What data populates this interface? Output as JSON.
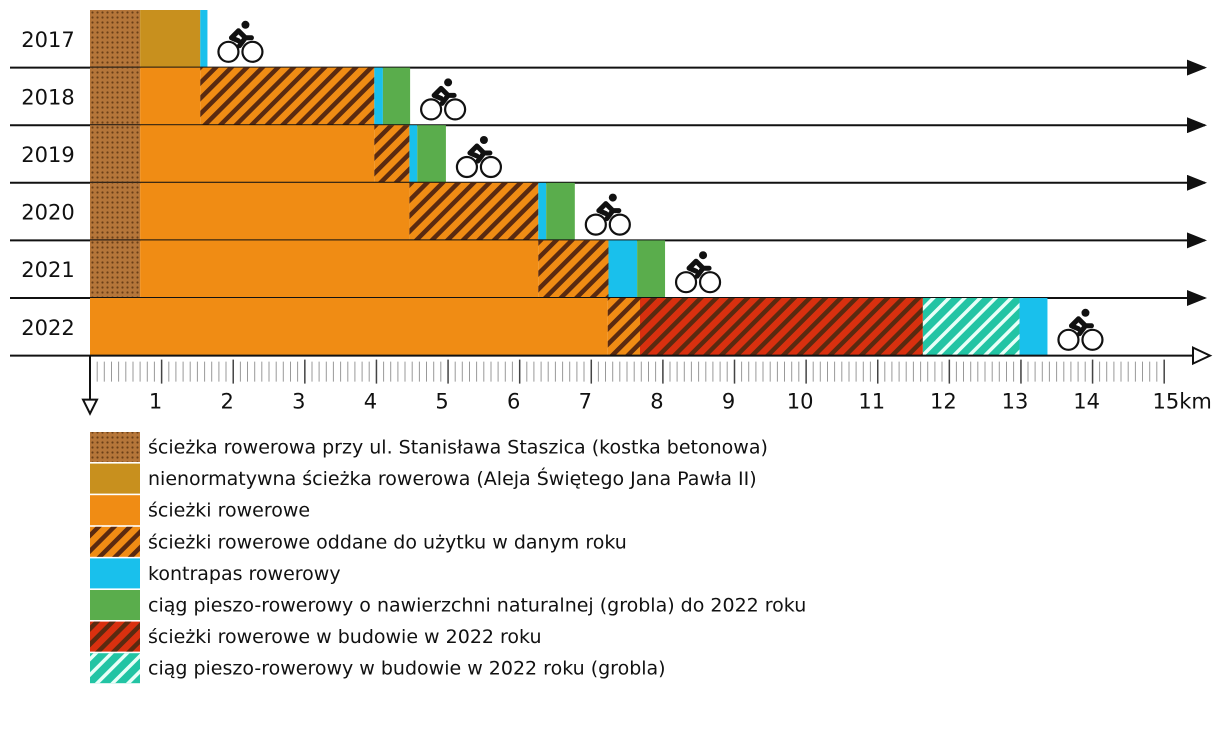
{
  "chart_data": {
    "type": "stacked-bar",
    "orientation": "horizontal",
    "categories": [
      "2017",
      "2018",
      "2019",
      "2020",
      "2021",
      "2022"
    ],
    "xlim": [
      0,
      15.5
    ],
    "xticks": [
      1,
      2,
      3,
      4,
      5,
      6,
      7,
      8,
      9,
      10,
      11,
      12,
      13,
      14,
      {
        "value": 15,
        "label": "15km"
      }
    ],
    "series": [
      {
        "name": "ścieżka rowerowa przy ul. Stanisława Staszica (kostka betonowa)",
        "color": "#b5763a",
        "pattern": "dots",
        "values": [
          0.7,
          0.7,
          0.7,
          0.7,
          0.7,
          null
        ]
      },
      {
        "name": "nienormatywna ścieżka rowerowa (Aleja Świętego Jana Pawła II)",
        "color": "#c8901e",
        "values": [
          0.84,
          null,
          null,
          null,
          null,
          null
        ]
      },
      {
        "name": "ścieżki rowerowe",
        "color": "#f08c14",
        "values": [
          null,
          0.84,
          3.27,
          3.76,
          5.56,
          7.23
        ]
      },
      {
        "name": "ścieżki rowerowe oddane do użytku w danym roku",
        "color": "#f08c14",
        "pattern": "stripes",
        "values": [
          null,
          2.43,
          0.49,
          1.8,
          0.98,
          0.45
        ]
      },
      {
        "name": "kontrapas rowerowy",
        "color": "#19c0ec",
        "values": [
          0.1,
          0.12,
          0.11,
          0.11,
          0.4,
          0.39
        ]
      },
      {
        "name": "ciąg pieszo-rowerowy o nawierzchni naturalnej (grobla) do 2022 roku",
        "color": "#5aad4c",
        "values": [
          null,
          0.38,
          0.4,
          0.4,
          0.39,
          null
        ]
      },
      {
        "name": "ścieżki rowerowe w budowie w 2022 roku",
        "color": "#d9300f",
        "pattern": "stripes",
        "values": [
          null,
          null,
          null,
          null,
          null,
          3.95
        ]
      },
      {
        "name": "ciąg pieszo-rowerowy w budowie w 2022 roku (grobla)",
        "color": "#22c4a4",
        "pattern": "stripes-light",
        "values": [
          null,
          null,
          null,
          null,
          null,
          1.35
        ]
      }
    ]
  }
}
